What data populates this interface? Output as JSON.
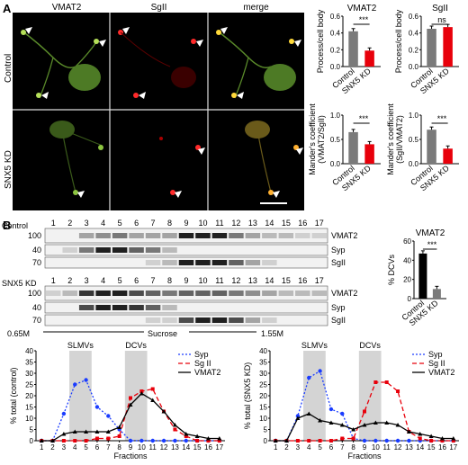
{
  "panelA": {
    "letter": "A",
    "channels": [
      "VMAT2",
      "SgII",
      "merge"
    ],
    "conditions": [
      "Control",
      "SNX5 KD"
    ]
  },
  "bar_charts": {
    "groups": [
      "Control",
      "SNX5 KD"
    ],
    "colors": {
      "control": "#7a7a7a",
      "kd": "#e8000b",
      "black": "#000000"
    },
    "sig": [
      "***",
      "ns",
      "***",
      "***",
      "***"
    ]
  },
  "panelB": {
    "letter": "B",
    "control_label": "Control",
    "kd_label": "SNX5 KD",
    "fractions": [
      "1",
      "2",
      "3",
      "4",
      "5",
      "6",
      "7",
      "8",
      "9",
      "10",
      "11",
      "12",
      "13",
      "14",
      "15",
      "16",
      "17"
    ],
    "mw": [
      "100",
      "40",
      "70"
    ],
    "bands": [
      "VMAT2",
      "Syp",
      "SgII"
    ],
    "sucrose": {
      "low": "0.65M",
      "label": "Sucrose",
      "high": "1.55M"
    }
  },
  "chart_data": [
    {
      "type": "bar",
      "title": "VMAT2",
      "ylabel": "Process/cell body",
      "categories": [
        "Control",
        "SNX5 KD"
      ],
      "values": [
        0.42,
        0.19
      ],
      "ylim": [
        0,
        0.6
      ],
      "yticks": [
        "0.0",
        "0.2",
        "0.4",
        "0.6"
      ],
      "significance": "***"
    },
    {
      "type": "bar",
      "title": "SgII",
      "ylabel": "Process/cell body",
      "categories": [
        "Control",
        "SNX5 KD"
      ],
      "values": [
        0.45,
        0.47
      ],
      "ylim": [
        0,
        0.6
      ],
      "yticks": [
        "0.0",
        "0.2",
        "0.4",
        "0.6"
      ],
      "significance": "ns"
    },
    {
      "type": "bar",
      "ylabel": "Mander's coefficient (VMAT2/SgII)",
      "categories": [
        "Control",
        "SNX5 KD"
      ],
      "values": [
        0.65,
        0.4
      ],
      "ylim": [
        0,
        1.0
      ],
      "yticks": [
        "0.0",
        "0.5",
        "1.0"
      ],
      "significance": "***"
    },
    {
      "type": "bar",
      "ylabel": "Mander's coefficient (SgII/VMAT2)",
      "categories": [
        "Control",
        "SNX5 KD"
      ],
      "values": [
        0.7,
        0.31
      ],
      "ylim": [
        0,
        1.0
      ],
      "yticks": [
        "0.0",
        "0.5",
        "1.0"
      ],
      "significance": "***"
    },
    {
      "type": "bar",
      "title": "VMAT2",
      "ylabel": "% DCVs",
      "categories": [
        "Control",
        "SNX5 KD"
      ],
      "values": [
        47,
        10
      ],
      "ylim": [
        0,
        60
      ],
      "yticks": [
        "0",
        "20",
        "40",
        "60"
      ],
      "significance": "***"
    },
    {
      "type": "line",
      "ylabel": "% total (control)",
      "xlabel": "Fractions",
      "ylim": [
        0,
        40
      ],
      "yticks": [
        "0",
        "5",
        "10",
        "15",
        "20",
        "25",
        "30",
        "35",
        "40"
      ],
      "x": [
        1,
        2,
        3,
        4,
        5,
        6,
        7,
        8,
        9,
        10,
        11,
        12,
        13,
        14,
        15,
        16,
        17
      ],
      "regions": [
        "SLMVs",
        "DCVs"
      ],
      "series": [
        {
          "name": "Syp",
          "values": [
            0,
            0,
            12,
            25,
            27,
            15,
            11,
            5,
            0,
            0,
            0,
            0,
            0,
            0,
            0,
            0,
            0
          ]
        },
        {
          "name": "Sg II",
          "values": [
            0,
            0,
            0,
            0,
            0,
            1,
            1,
            2,
            19,
            22,
            23,
            13,
            5,
            2,
            0,
            0,
            0
          ]
        },
        {
          "name": "VMAT2",
          "values": [
            0,
            0,
            3,
            4,
            4,
            4,
            4,
            6,
            16,
            21,
            18,
            13,
            7,
            3,
            2,
            1,
            1
          ]
        }
      ]
    },
    {
      "type": "line",
      "ylabel": "% total (SNX5 KD)",
      "xlabel": "Fractions",
      "ylim": [
        0,
        40
      ],
      "yticks": [
        "0",
        "5",
        "10",
        "15",
        "20",
        "25",
        "30",
        "35",
        "40"
      ],
      "x": [
        1,
        2,
        3,
        4,
        5,
        6,
        7,
        8,
        9,
        10,
        11,
        12,
        13,
        14,
        15,
        16,
        17
      ],
      "regions": [
        "SLMVs",
        "DCVs"
      ],
      "series": [
        {
          "name": "Syp",
          "values": [
            0,
            0,
            11,
            28,
            31,
            14,
            12,
            1,
            0,
            0,
            0,
            0,
            0,
            0,
            0,
            0,
            0
          ]
        },
        {
          "name": "Sg II",
          "values": [
            0,
            0,
            0,
            0,
            0,
            0,
            1,
            1,
            13,
            26,
            26,
            22,
            4,
            1,
            0,
            0,
            0
          ]
        },
        {
          "name": "VMAT2",
          "values": [
            0,
            0,
            10,
            12,
            9,
            8,
            7,
            5,
            7,
            8,
            8,
            7,
            4,
            3,
            2,
            1,
            1
          ]
        }
      ]
    }
  ]
}
